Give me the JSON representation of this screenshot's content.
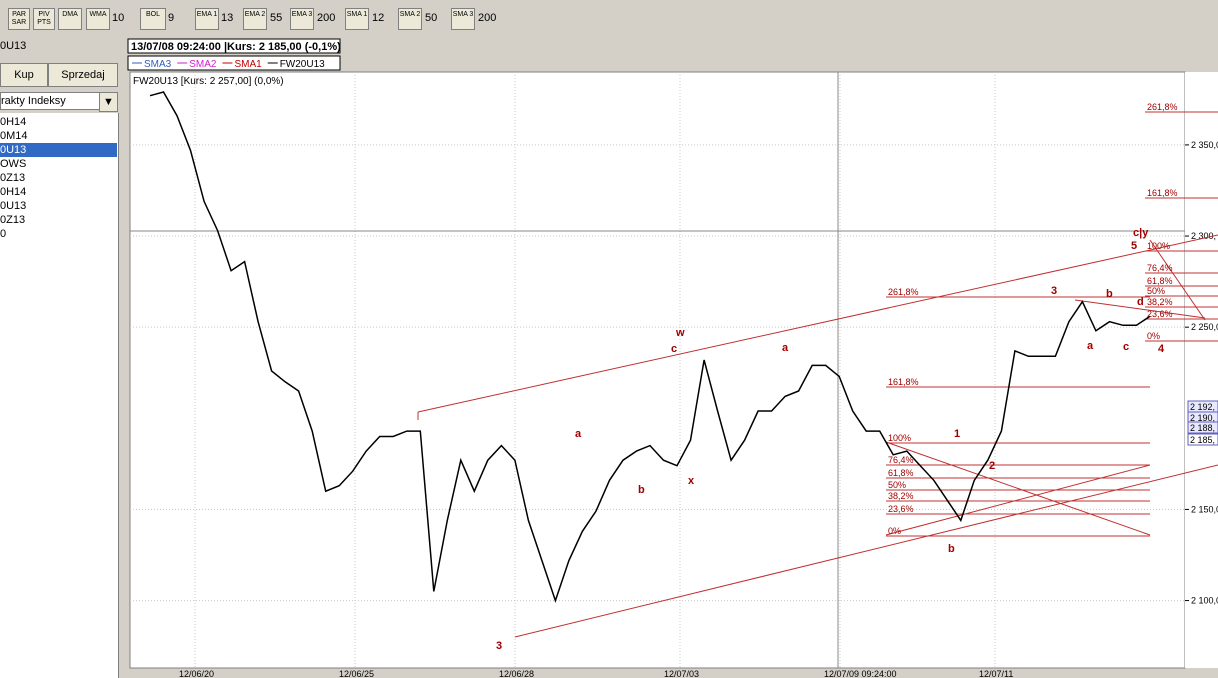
{
  "toolbar": {
    "buttons": [
      "PAR SAR",
      "PIV PTS",
      "DMA",
      "WMA",
      "BOL",
      "EMA 1",
      "EMA 2",
      "EMA 3",
      "SMA 1",
      "SMA 2",
      "SMA 3"
    ],
    "periods": [
      "10",
      "9",
      "13",
      "55",
      "200",
      "12",
      "50",
      "200"
    ]
  },
  "sidebar": {
    "symbol": "0U13",
    "actions": [
      "Kup",
      "Sprzedaj"
    ],
    "dropdown": "rakty Indeksy",
    "items": [
      "0H14",
      "0M14",
      "0U13",
      "OWS",
      "0Z13",
      "0H14",
      "0U13",
      "0Z13",
      "0"
    ]
  },
  "chart_data": {
    "type": "line",
    "info": "13/07/08 09:24:00 |Kurs: 2 185,00 (-0,1%)",
    "subtitle": "FW20U13 [Kurs: 2 257,00] (0,0%)",
    "legend": [
      {
        "name": "SMA3",
        "color": "#3060c0"
      },
      {
        "name": "SMA2",
        "color": "#d020d0"
      },
      {
        "name": "SMA1",
        "color": "#c00000"
      },
      {
        "name": "FW20U13",
        "color": "#000000"
      }
    ],
    "series": [
      {
        "name": "FW20U13",
        "color": "#000000",
        "values": [
          2377,
          2379,
          2366,
          2347,
          2319,
          2303,
          2281,
          2286,
          2253,
          2226,
          2220,
          2215,
          2193,
          2160,
          2163,
          2171,
          2182,
          2190,
          2190,
          2193,
          2193,
          2105,
          2144,
          2177,
          2160,
          2177,
          2185,
          2177,
          2144,
          2122,
          2100,
          2122,
          2138,
          2149,
          2166,
          2177,
          2182,
          2185,
          2177,
          2174,
          2188,
          2232,
          2204,
          2177,
          2188,
          2204,
          2204,
          2212,
          2215,
          2229,
          2229,
          2223,
          2204,
          2193,
          2193,
          2180,
          2182,
          2174,
          2166,
          2155,
          2144,
          2166,
          2177,
          2193,
          2237,
          2234,
          2234,
          2234,
          2253,
          2264,
          2248,
          2253,
          2251,
          2251,
          2256
        ]
      }
    ],
    "ylim": [
      2063,
      2390
    ],
    "yticks": [
      {
        "value": 2350,
        "label": "2 350,0"
      },
      {
        "value": 2300,
        "label": "2 300,"
      },
      {
        "value": 2250,
        "label": "2 250,0"
      },
      {
        "value": 2150,
        "label": "2 150,0"
      },
      {
        "value": 2100,
        "label": "2 100,0"
      }
    ],
    "price_boxes": [
      "2 192,",
      "2 190,",
      "2 188,",
      "2 185,"
    ],
    "xtick_labels": [
      "12/06/20",
      "12/06/25",
      "12/06/28",
      "12/07/03",
      "12/07/09 09:24:00",
      "12/07/11"
    ],
    "fib_right": [
      "261,8%",
      "161,8%",
      "100%",
      "76,4%",
      "61,8%",
      "50%",
      "38,2%",
      "23,6%",
      "0%"
    ],
    "fib_mid": [
      "261,8%",
      "161,8%",
      "100%",
      "76,4%",
      "61,8%",
      "50%",
      "38,2%",
      "23,6%",
      "0%"
    ],
    "waves": [
      "w",
      "c",
      "a",
      "b",
      "x",
      "a",
      "3",
      "1",
      "2",
      "b",
      "3",
      "b",
      "a",
      "c",
      "4",
      "d",
      "c|y",
      "5"
    ]
  }
}
